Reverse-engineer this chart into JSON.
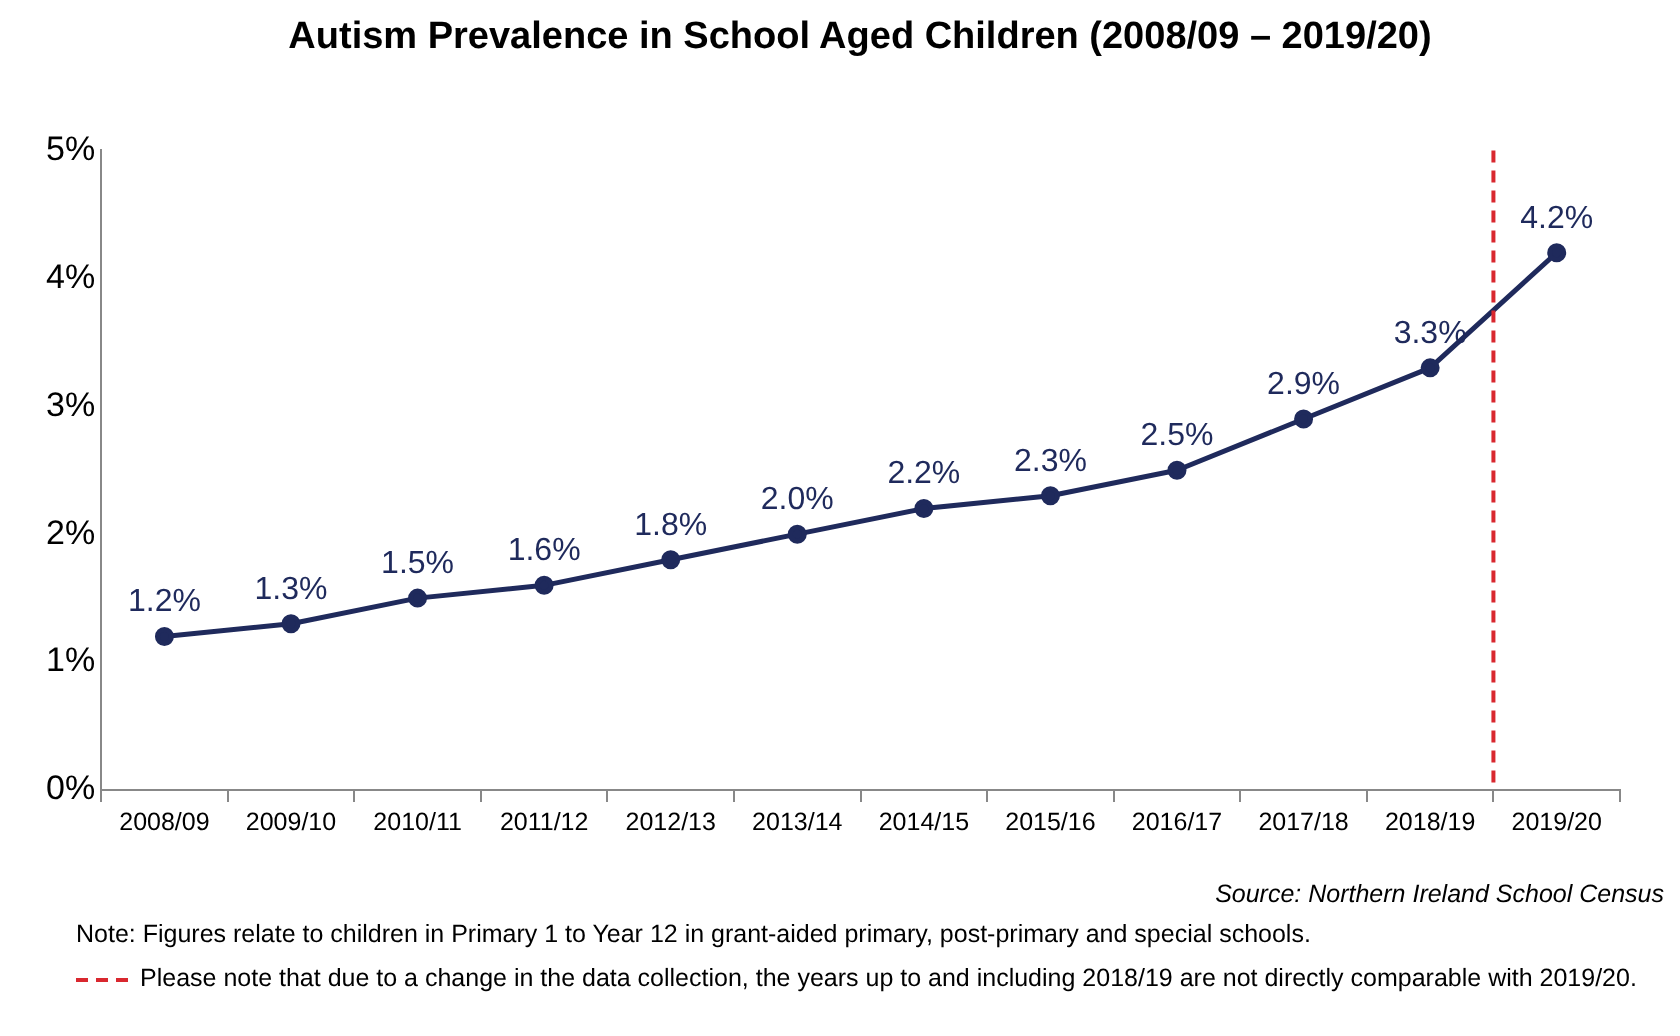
{
  "chart_data": {
    "type": "line",
    "title": "Autism Prevalence in School Aged Children (2008/09 – 2019/20)",
    "categories": [
      "2008/09",
      "2009/10",
      "2010/11",
      "2011/12",
      "2012/13",
      "2013/14",
      "2014/15",
      "2015/16",
      "2016/17",
      "2017/18",
      "2018/19",
      "2019/20"
    ],
    "series": [
      {
        "color": "#1f2a5c",
        "values": [
          1.2,
          1.3,
          1.5,
          1.6,
          1.8,
          2.0,
          2.2,
          2.3,
          2.5,
          2.9,
          3.3,
          4.2
        ],
        "value_labels": [
          "1.2%",
          "1.3%",
          "1.5%",
          "1.6%",
          "1.8%",
          "2.0%",
          "2.2%",
          "2.3%",
          "2.5%",
          "2.9%",
          "3.3%",
          "4.2%"
        ]
      }
    ],
    "ylim": [
      0,
      5
    ],
    "yticks": [
      {
        "value": 0,
        "label": "0%"
      },
      {
        "value": 1,
        "label": "1%"
      },
      {
        "value": 2,
        "label": "2%"
      },
      {
        "value": 3,
        "label": "3%"
      },
      {
        "value": 4,
        "label": "4%"
      },
      {
        "value": 5,
        "label": "5%"
      }
    ],
    "ref_lines": [
      {
        "axis": "x",
        "value": "2019/20",
        "color": "#d9282f",
        "line_style": "dashed"
      }
    ],
    "grid": false,
    "legend": false,
    "marker": "circle",
    "line_style": "solid",
    "annotations": [
      "Source: Northern Ireland School Census",
      "Note: Figures relate to children in Primary 1 to Year 12 in grant-aided primary, post-primary and special schools.",
      "Please note that due to a change in the data collection, the years up to and including 2018/19 are not directly comparable with 2019/20."
    ]
  }
}
